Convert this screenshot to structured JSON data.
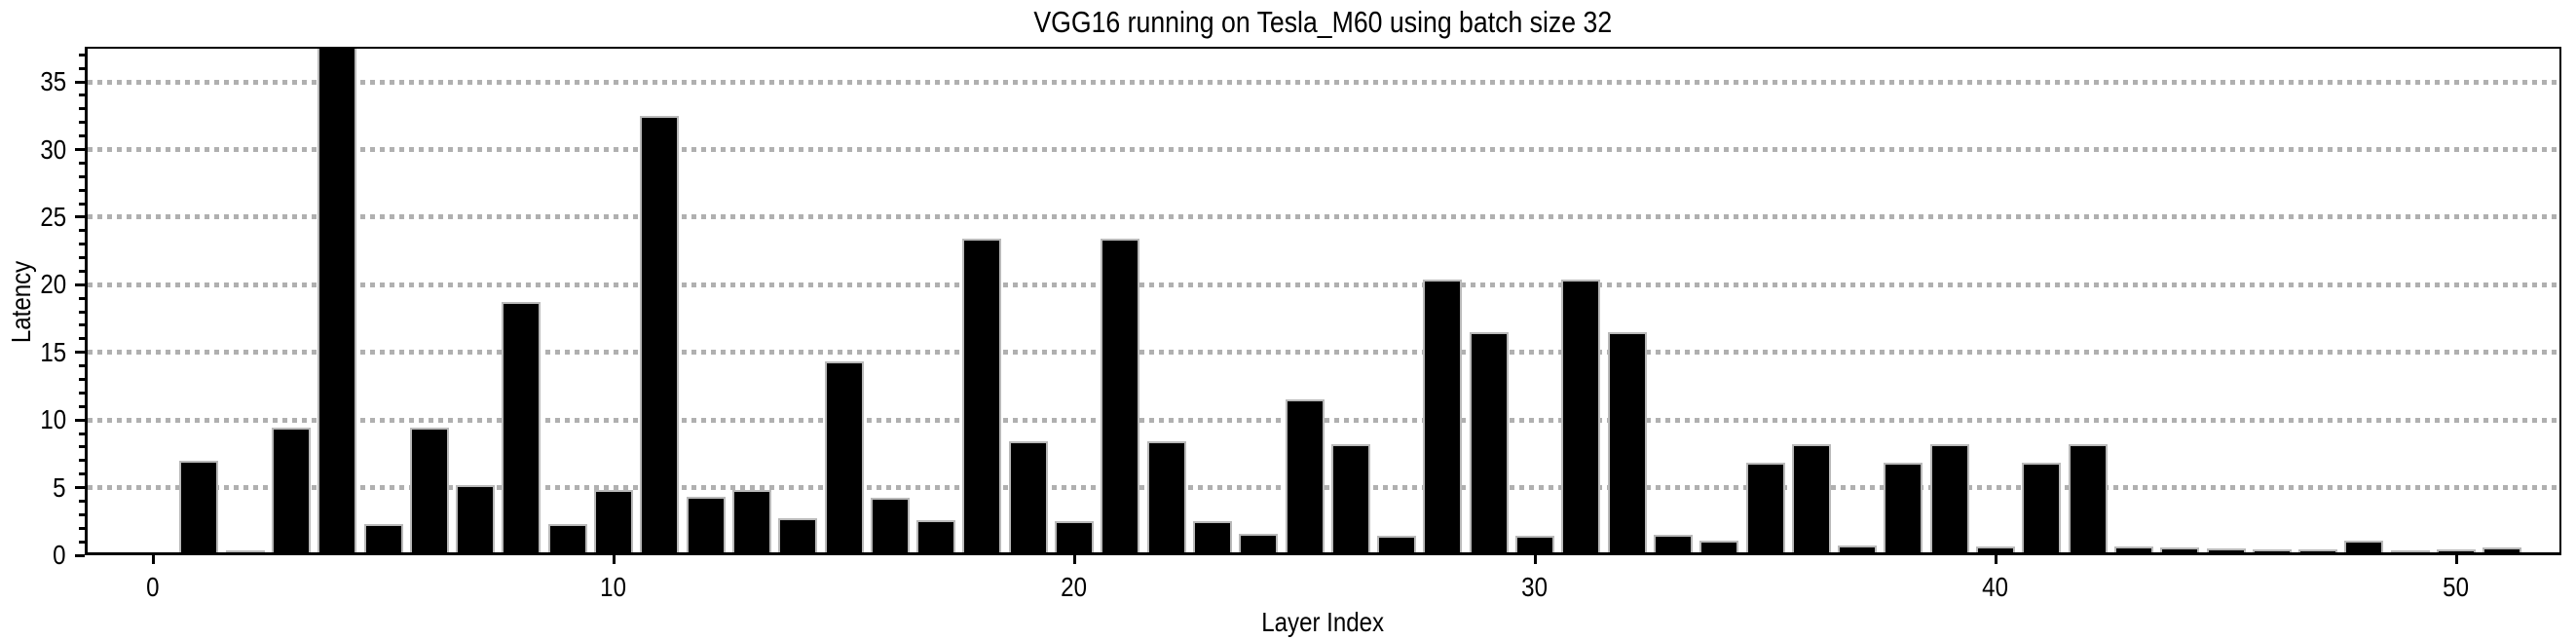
{
  "chart_data": {
    "type": "bar",
    "title": "VGG16 running on Tesla_M60 using batch size 32",
    "xlabel": "Layer Index",
    "ylabel": "Latency",
    "x": [
      0,
      1,
      2,
      3,
      4,
      5,
      6,
      7,
      8,
      9,
      10,
      11,
      12,
      13,
      14,
      15,
      16,
      17,
      18,
      19,
      20,
      21,
      22,
      23,
      24,
      25,
      26,
      27,
      28,
      29,
      30,
      31,
      32,
      33,
      34,
      35,
      36,
      37,
      38,
      39,
      40,
      41,
      42,
      43,
      44,
      45,
      46,
      47,
      48,
      49,
      50,
      51
    ],
    "values": [
      0.02,
      6.8,
      0.15,
      9.2,
      38.0,
      2.1,
      9.2,
      5.0,
      18.5,
      2.1,
      4.6,
      32.3,
      4.1,
      4.6,
      2.5,
      14.1,
      4.0,
      2.4,
      23.2,
      8.2,
      2.3,
      23.2,
      8.2,
      2.3,
      1.4,
      11.3,
      8.0,
      1.2,
      20.2,
      16.3,
      1.2,
      20.2,
      16.3,
      1.3,
      0.9,
      6.6,
      8.0,
      0.5,
      6.6,
      8.0,
      0.4,
      6.6,
      8.0,
      0.45,
      0.35,
      0.3,
      0.25,
      0.2,
      0.9,
      0.15,
      0.2,
      0.35
    ],
    "xticks": [
      0,
      10,
      20,
      30,
      40,
      50
    ],
    "yticks": [
      0,
      5,
      10,
      15,
      20,
      25,
      30,
      35
    ],
    "ylim": [
      0,
      37.6
    ],
    "grid": "horizontal dotted gridlines at y multiples of 5",
    "legend_position": "none",
    "bar_color": "#000000",
    "bar_edge_color": "#b9b9b9",
    "grid_color": "#b0b0b0",
    "axis_color": "#000000",
    "background_color": "#ffffff"
  }
}
